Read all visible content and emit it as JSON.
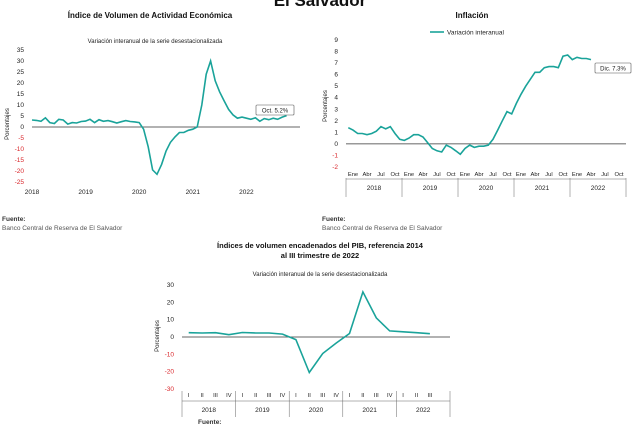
{
  "page_title": "El Salvador",
  "charts": {
    "ivae": {
      "title": "Índice de Volumen de  Actividad Económica",
      "subtitle": "Variación interanual de la serie desestacionalizada",
      "ylabel": "Porcentajes",
      "callout": "Oct. 5.2%",
      "source_label": "Fuente:",
      "source_text": "Banco Central de Reserva de El Salvador"
    },
    "inflacion": {
      "title": "Inflación",
      "legend": "Variación interanual",
      "ylabel": "Porcentajes",
      "callout": "Dic. 7.3%",
      "source_label": "Fuente:",
      "source_text": "Banco Central de Reserva de El Salvador"
    },
    "pib": {
      "title_line1": "Índices de volumen encadenados del PIB, referencia 2014",
      "title_line2": "al III trimestre de 2022",
      "subtitle": "Variación interanual de la serie desestacionalizada",
      "ylabel": "Porcentajes",
      "source_label": "Fuente:"
    }
  },
  "colors": {
    "line": "#1aa39a",
    "negative_tick": "#d9262b",
    "axis": "#333333"
  },
  "chart_data": [
    {
      "type": "line",
      "id": "ivae",
      "title": "Índice de Volumen de  Actividad Económica",
      "subtitle": "Variación interanual de la serie desestacionalizada",
      "ylabel": "Porcentajes",
      "ylim": [
        -25,
        35
      ],
      "yticks": [
        -25,
        -20,
        -15,
        -10,
        -5,
        0,
        5,
        10,
        15,
        20,
        25,
        30,
        35
      ],
      "x_tick_labels": [
        "2018",
        "2019",
        "2020",
        "2021",
        "2022"
      ],
      "x_tick_values": [
        2018,
        2019,
        2020,
        2021,
        2022
      ],
      "xlim": [
        2018,
        2023
      ],
      "x": [
        2018.0,
        2018.083,
        2018.167,
        2018.25,
        2018.333,
        2018.417,
        2018.5,
        2018.583,
        2018.667,
        2018.75,
        2018.833,
        2018.917,
        2019.0,
        2019.083,
        2019.167,
        2019.25,
        2019.333,
        2019.417,
        2019.5,
        2019.583,
        2019.667,
        2019.75,
        2019.833,
        2019.917,
        2020.0,
        2020.083,
        2020.167,
        2020.25,
        2020.333,
        2020.417,
        2020.5,
        2020.583,
        2020.667,
        2020.75,
        2020.833,
        2020.917,
        2021.0,
        2021.083,
        2021.167,
        2021.25,
        2021.333,
        2021.417,
        2021.5,
        2021.583,
        2021.667,
        2021.75,
        2021.833,
        2021.917,
        2022.0,
        2022.083,
        2022.167,
        2022.25,
        2022.333,
        2022.417,
        2022.5,
        2022.583,
        2022.667,
        2022.75
      ],
      "values": [
        3.2,
        3.0,
        2.6,
        4.2,
        2.0,
        1.6,
        3.5,
        3.2,
        1.3,
        2.0,
        1.8,
        2.5,
        2.7,
        3.5,
        2.0,
        3.3,
        2.6,
        2.9,
        2.4,
        1.8,
        2.4,
        2.9,
        2.5,
        2.3,
        2.0,
        -1.0,
        -9.0,
        -19.5,
        -21.5,
        -17.0,
        -11.0,
        -7.0,
        -4.5,
        -2.5,
        -2.5,
        -1.5,
        -1.0,
        0.0,
        10.0,
        24.0,
        30.0,
        21.0,
        16.0,
        12.0,
        8.0,
        5.5,
        4.0,
        4.5,
        4.0,
        3.5,
        4.2,
        2.6,
        3.8,
        3.3,
        4.0,
        3.5,
        4.5,
        5.2
      ],
      "callout": "Oct. 5.2%"
    },
    {
      "type": "line",
      "id": "inflacion",
      "title": "Inflación",
      "series": [
        {
          "name": "Variación interanual"
        }
      ],
      "ylabel": "Porcentajes",
      "ylim": [
        -2,
        9
      ],
      "yticks": [
        -2,
        -1,
        0,
        1,
        2,
        3,
        4,
        5,
        6,
        7,
        8,
        9
      ],
      "x_month_labels": [
        "Ene",
        "Abr",
        "Jul",
        "Oct",
        "Ene",
        "Abr",
        "Jul",
        "Oct",
        "Ene",
        "Abr",
        "Jul",
        "Oct",
        "Ene",
        "Abr",
        "Jul",
        "Oct",
        "Ene",
        "Abr",
        "Jul",
        "Oct"
      ],
      "x_year_labels": [
        "2018",
        "2019",
        "2020",
        "2021",
        "2022"
      ],
      "values": [
        1.4,
        1.2,
        0.9,
        0.9,
        0.8,
        0.9,
        1.1,
        1.5,
        1.3,
        1.5,
        0.9,
        0.4,
        0.3,
        0.5,
        0.8,
        0.8,
        0.6,
        0.1,
        -0.4,
        -0.6,
        -0.7,
        -0.1,
        -0.3,
        -0.6,
        -0.9,
        -0.4,
        -0.1,
        -0.3,
        -0.2,
        -0.2,
        -0.1,
        0.4,
        1.2,
        2.0,
        2.8,
        2.6,
        3.5,
        4.3,
        5.0,
        5.6,
        6.2,
        6.2,
        6.6,
        6.7,
        6.7,
        6.6,
        7.6,
        7.7,
        7.3,
        7.5,
        7.4,
        7.4,
        7.3
      ],
      "callout": "Dic. 7.3%"
    },
    {
      "type": "line",
      "id": "pib",
      "title": "Índices de volumen encadenados del PIB, referencia 2014 al III trimestre de 2022",
      "subtitle": "Variación interanual de la serie desestacionalizada",
      "ylabel": "Porcentajes",
      "ylim": [
        -30,
        30
      ],
      "yticks": [
        -30,
        -20,
        -10,
        0,
        10,
        20,
        30
      ],
      "x_quarter_labels": [
        "I",
        "II",
        "III",
        "IV",
        "I",
        "II",
        "III",
        "IV",
        "I",
        "II",
        "III",
        "IV",
        "I",
        "II",
        "III",
        "IV",
        "I",
        "II",
        "III"
      ],
      "x_year_labels": [
        "2018",
        "2019",
        "2020",
        "2021",
        "2022"
      ],
      "values": [
        2.5,
        2.3,
        2.5,
        1.3,
        2.6,
        2.3,
        2.3,
        1.7,
        -1.5,
        -20.5,
        -9.5,
        -3.5,
        2.0,
        26.0,
        11.0,
        3.5,
        3.0,
        2.5,
        1.9
      ]
    }
  ]
}
